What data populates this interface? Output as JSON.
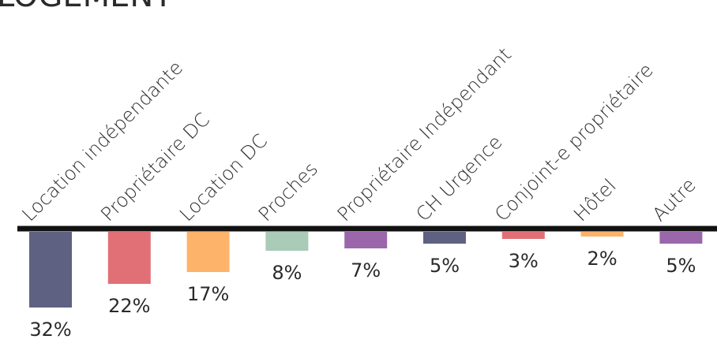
{
  "chart_data": {
    "type": "bar",
    "title": "LOGEMENT",
    "categories": [
      "Location indépendante",
      "Propriétaire DC",
      "Location DC",
      "Proches",
      "Propriétaire Indépendant",
      "CH Urgence",
      "Conjoint-e propriétaire",
      "Hôtel",
      "Autre"
    ],
    "values": [
      32,
      22,
      17,
      8,
      7,
      5,
      3,
      2,
      5
    ],
    "value_labels": [
      "32%",
      "22%",
      "17%",
      "8%",
      "7%",
      "5%",
      "3%",
      "2%",
      "5%"
    ],
    "colors": [
      "#5f6182",
      "#e07075",
      "#fdb369",
      "#a9cbb7",
      "#9b67ab",
      "#5f6182",
      "#e07075",
      "#fdb369",
      "#9b67ab"
    ]
  }
}
